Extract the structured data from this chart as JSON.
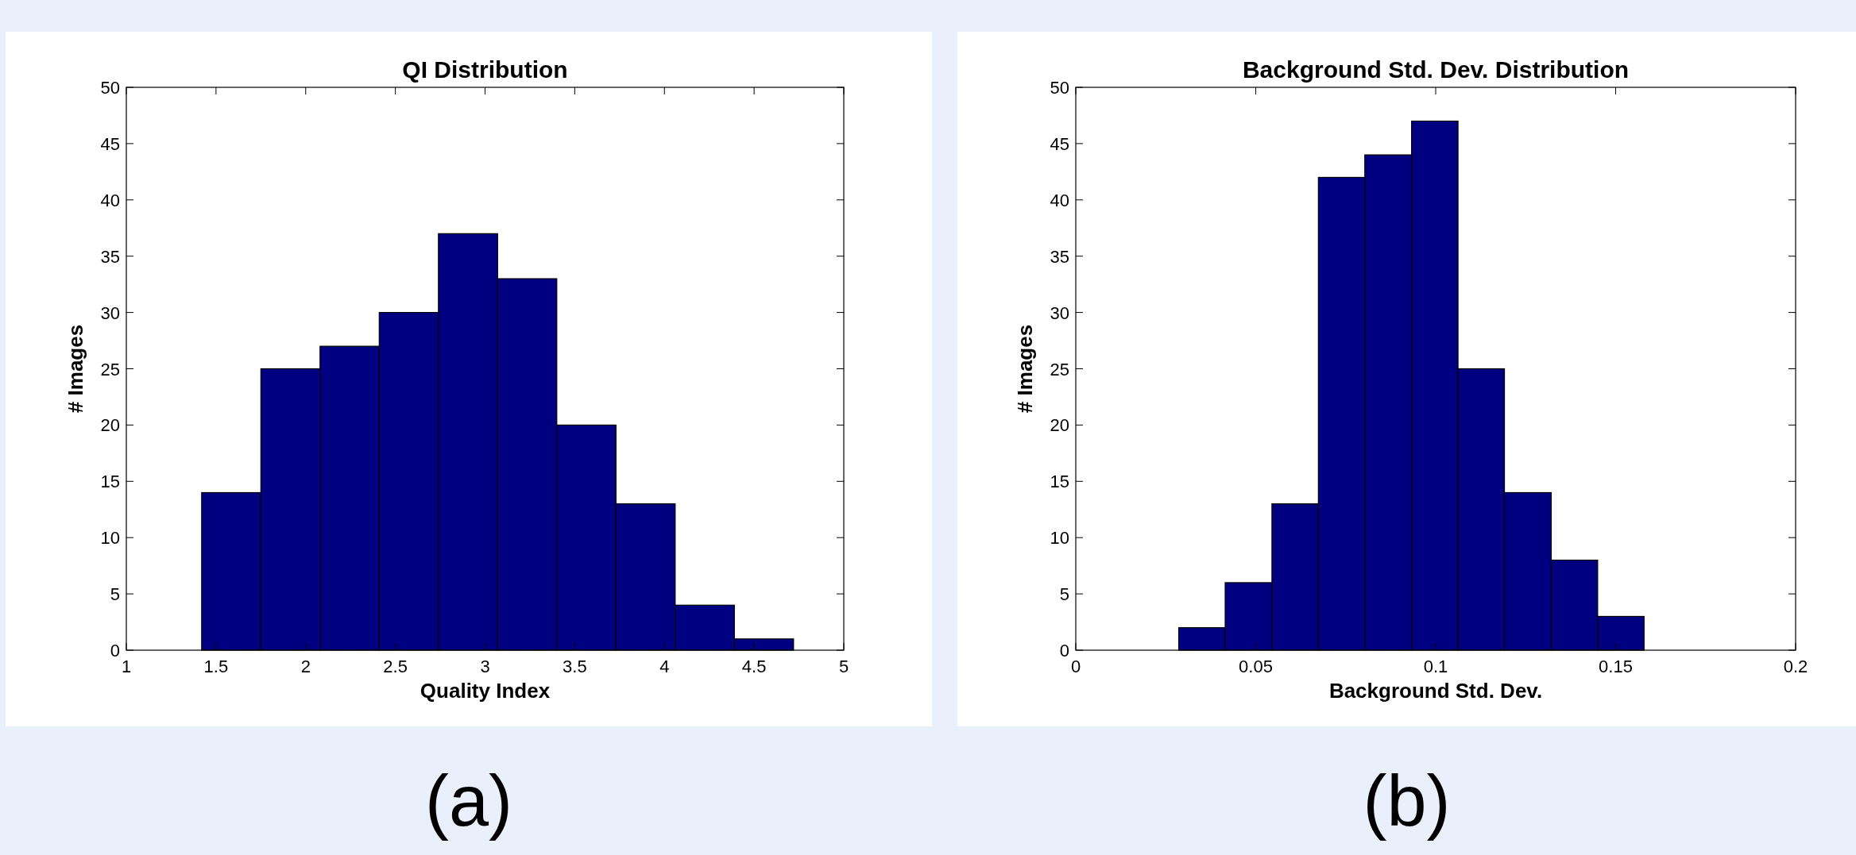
{
  "chart_data": [
    {
      "type": "histogram",
      "title": "QI Distribution",
      "xlabel": "Quality Index",
      "ylabel": "# Images",
      "bins": [
        1.42,
        1.75,
        2.08,
        2.41,
        2.74,
        3.07,
        3.4,
        3.73,
        4.06,
        4.39,
        4.72
      ],
      "values": [
        14,
        25,
        27,
        30,
        37,
        33,
        20,
        13,
        4,
        1
      ],
      "color": "#000080",
      "xlim": [
        1,
        5
      ],
      "ylim": [
        0,
        50
      ],
      "xticks": [
        1,
        1.5,
        2,
        2.5,
        3,
        3.5,
        4,
        4.5,
        5
      ],
      "yticks": [
        0,
        5,
        10,
        15,
        20,
        25,
        30,
        35,
        40,
        45,
        50
      ],
      "annotations": [
        "(a)"
      ]
    },
    {
      "type": "histogram",
      "title": "Background Std. Dev. Distribution",
      "xlabel": "Background Std. Dev.",
      "ylabel": "# Images",
      "bins": [
        0.0286,
        0.0415,
        0.0545,
        0.0674,
        0.0803,
        0.0933,
        0.1062,
        0.1191,
        0.1321,
        0.145,
        0.1579
      ],
      "values": [
        2,
        6,
        13,
        42,
        44,
        47,
        25,
        14,
        8,
        3
      ],
      "color": "#000080",
      "xlim": [
        0,
        0.2
      ],
      "ylim": [
        0,
        50
      ],
      "xticks": [
        0,
        0.05,
        0.1,
        0.15,
        0.2
      ],
      "yticks": [
        0,
        5,
        10,
        15,
        20,
        25,
        30,
        35,
        40,
        45,
        50
      ],
      "annotations": [
        "(b)"
      ]
    }
  ]
}
